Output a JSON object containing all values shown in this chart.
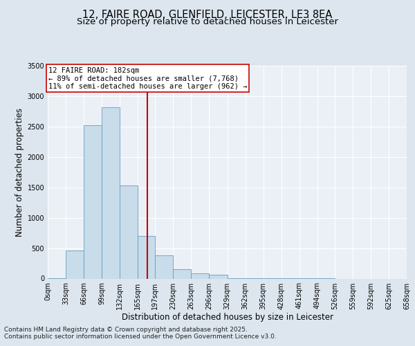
{
  "title_line1": "12, FAIRE ROAD, GLENFIELD, LEICESTER, LE3 8EA",
  "title_line2": "Size of property relative to detached houses in Leicester",
  "xlabel": "Distribution of detached houses by size in Leicester",
  "ylabel": "Number of detached properties",
  "bar_edges": [
    0,
    33,
    66,
    99,
    132,
    165,
    197,
    230,
    263,
    296,
    329,
    362,
    395,
    428,
    461,
    494,
    526,
    559,
    592,
    625,
    658
  ],
  "bar_heights": [
    10,
    460,
    2520,
    2820,
    1530,
    700,
    380,
    155,
    80,
    65,
    10,
    5,
    2,
    2,
    1,
    1,
    0,
    0,
    0,
    0
  ],
  "bar_color": "#c8dcea",
  "bar_edgecolor": "#6b9dbf",
  "property_value": 182,
  "vline_color": "#cc0000",
  "annotation_text": "12 FAIRE ROAD: 182sqm\n← 89% of detached houses are smaller (7,768)\n11% of semi-detached houses are larger (962) →",
  "annotation_box_edgecolor": "#cc0000",
  "ylim": [
    0,
    3500
  ],
  "yticks": [
    0,
    500,
    1000,
    1500,
    2000,
    2500,
    3000,
    3500
  ],
  "tick_labels": [
    "0sqm",
    "33sqm",
    "66sqm",
    "99sqm",
    "132sqm",
    "165sqm",
    "197sqm",
    "230sqm",
    "263sqm",
    "296sqm",
    "329sqm",
    "362sqm",
    "395sqm",
    "428sqm",
    "461sqm",
    "494sqm",
    "526sqm",
    "559sqm",
    "592sqm",
    "625sqm",
    "658sqm"
  ],
  "background_color": "#dde6ef",
  "plot_background": "#eaf0f6",
  "footer_line1": "Contains HM Land Registry data © Crown copyright and database right 2025.",
  "footer_line2": "Contains public sector information licensed under the Open Government Licence v3.0.",
  "title_fontsize": 10.5,
  "subtitle_fontsize": 9.5,
  "axis_label_fontsize": 8.5,
  "tick_fontsize": 7,
  "footer_fontsize": 6.5,
  "annotation_fontsize": 7.5
}
